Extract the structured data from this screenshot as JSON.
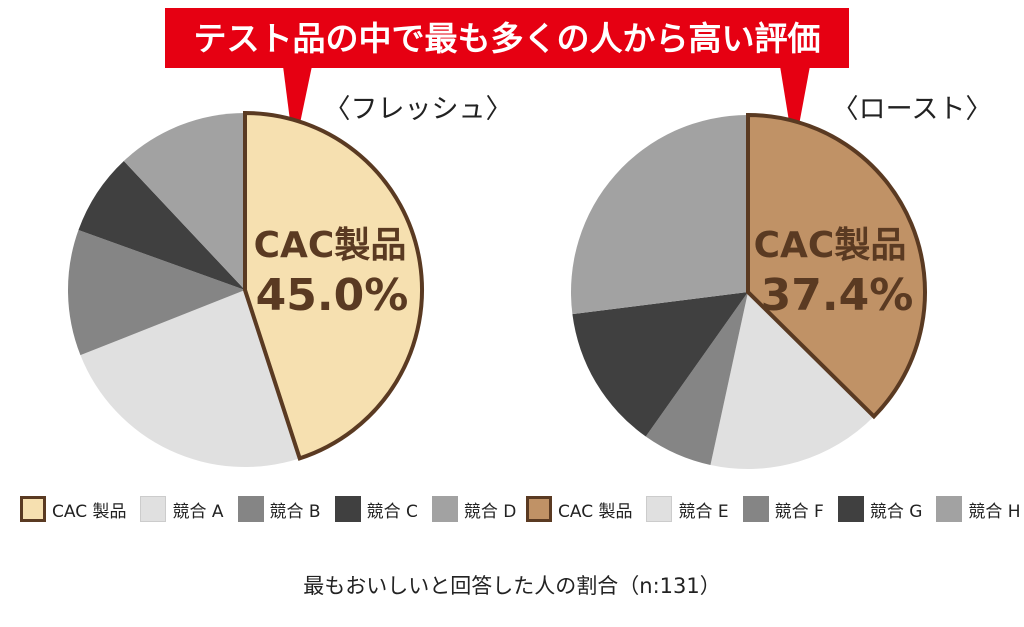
{
  "banner": {
    "text": "テスト品の中で最も多くの人から高い評価",
    "color": "#e60012"
  },
  "chart_data": [
    {
      "type": "pie",
      "title": "〈フレッシュ〉",
      "highlight_label": "CAC製品",
      "highlight_value_text": "45.0%",
      "slices": [
        {
          "label": "CAC 製品",
          "value": 45.0,
          "color": "#f6e0b0",
          "stroke": "#5a3a22"
        },
        {
          "label": "競合 A",
          "value": 24.0,
          "color": "#e0e0e0"
        },
        {
          "label": "競合 B",
          "value": 11.5,
          "color": "#858585"
        },
        {
          "label": "競合 C",
          "value": 7.5,
          "color": "#404040"
        },
        {
          "label": "競合 D",
          "value": 12.0,
          "color": "#a2a2a2"
        }
      ]
    },
    {
      "type": "pie",
      "title": "〈ロースト〉",
      "highlight_label": "CAC製品",
      "highlight_value_text": "37.4%",
      "slices": [
        {
          "label": "CAC 製品",
          "value": 37.4,
          "color": "#c09266",
          "stroke": "#5a3a22"
        },
        {
          "label": "競合 E",
          "value": 16.0,
          "color": "#e0e0e0"
        },
        {
          "label": "競合 F",
          "value": 6.4,
          "color": "#858585"
        },
        {
          "label": "競合 G",
          "value": 13.2,
          "color": "#404040"
        },
        {
          "label": "競合 H",
          "value": 27.0,
          "color": "#a2a2a2"
        }
      ]
    }
  ],
  "footnote": "最もおいしいと回答した人の割合（n:131）"
}
